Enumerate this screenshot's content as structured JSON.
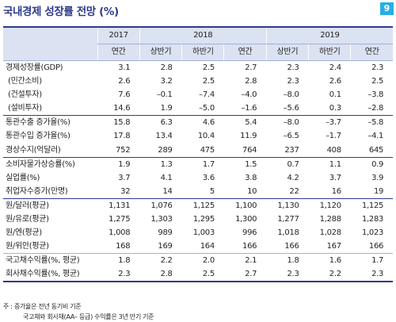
{
  "title": "국내경제 성장률 전망 (%)",
  "page_number": "9",
  "header": {
    "years": [
      "2017",
      "2018",
      "2019"
    ],
    "periods": [
      "연간",
      "상반기",
      "하반기",
      "연간",
      "상반기",
      "하반기",
      "연간"
    ]
  },
  "rows": [
    {
      "label": "경제성장률(GDP)",
      "values": [
        "3.1",
        "2.8",
        "2.5",
        "2.7",
        "2.3",
        "2.4",
        "2.3"
      ]
    },
    {
      "label": "(민간소비)",
      "values": [
        "2.6",
        "3.2",
        "2.5",
        "2.8",
        "2.3",
        "2.6",
        "2.5"
      ]
    },
    {
      "label": "(건설투자)",
      "values": [
        "7.6",
        "–0.1",
        "–7.4",
        "–4.0",
        "–8.0",
        "0.1",
        "–3.8"
      ]
    },
    {
      "label": "(설비투자)",
      "values": [
        "14.6",
        "1.9",
        "–5.0",
        "–1.6",
        "–5.6",
        "0.3",
        "–2.8"
      ]
    },
    {
      "label": "통관수출 증가율(%)",
      "values": [
        "15.8",
        "6.3",
        "4.6",
        "5.4",
        "–8.0",
        "–3.7",
        "–5.8"
      ]
    },
    {
      "label": "통관수입 증가율(%)",
      "values": [
        "17.8",
        "13.4",
        "10.4",
        "11.9",
        "–6.5",
        "–1.7",
        "–4.1"
      ]
    },
    {
      "label": "경상수지(억달러)",
      "values": [
        "752",
        "289",
        "475",
        "764",
        "237",
        "408",
        "645"
      ]
    },
    {
      "label": "소비자물가상승률(%)",
      "values": [
        "1.9",
        "1.3",
        "1.7",
        "1.5",
        "0.7",
        "1.1",
        "0.9"
      ]
    },
    {
      "label": "실업률(%)",
      "values": [
        "3.7",
        "4.1",
        "3.6",
        "3.8",
        "4.2",
        "3.7",
        "3.9"
      ]
    },
    {
      "label": "취업자수증가(만명)",
      "values": [
        "32",
        "14",
        "5",
        "10",
        "22",
        "16",
        "19"
      ]
    },
    {
      "label": "원/달러(평균)",
      "values": [
        "1,131",
        "1,076",
        "1,125",
        "1,100",
        "1,130",
        "1,120",
        "1,125"
      ]
    },
    {
      "label": "원/유로(평균)",
      "values": [
        "1,275",
        "1,303",
        "1,295",
        "1,300",
        "1,277",
        "1,288",
        "1,283"
      ]
    },
    {
      "label": "원/엔(평균)",
      "values": [
        "1,008",
        "989",
        "1,003",
        "996",
        "1,018",
        "1,028",
        "1,023"
      ]
    },
    {
      "label": "원/위안(평균)",
      "values": [
        "168",
        "169",
        "164",
        "166",
        "166",
        "167",
        "166"
      ]
    },
    {
      "label": "국고채수익률(%, 평균)",
      "values": [
        "1.8",
        "2.2",
        "2.0",
        "2.1",
        "1.8",
        "1.6",
        "1.7"
      ]
    },
    {
      "label": "회사채수익률(%, 평균)",
      "values": [
        "2.3",
        "2.8",
        "2.5",
        "2.7",
        "2.3",
        "2.2",
        "2.3"
      ]
    }
  ],
  "notes": [
    "주 : 증가율은 전년 동기비 기준",
    "국고채와 회사채(AA– 등급) 수익률은 3년 만기 기준"
  ]
}
